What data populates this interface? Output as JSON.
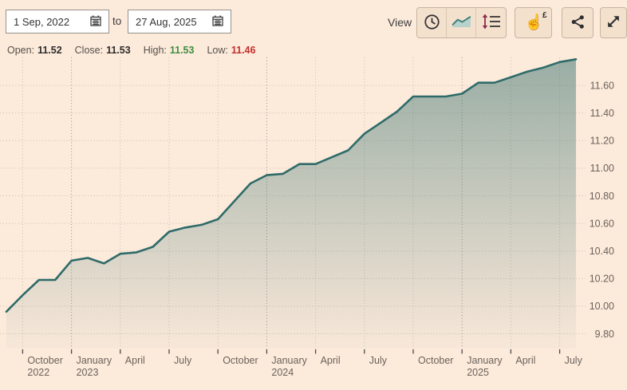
{
  "header": {
    "date_from": "1 Sep, 2022",
    "to_label": "to",
    "date_to": "27 Aug, 2025",
    "view_label": "View",
    "tool_buttons": [
      {
        "name": "history",
        "icon": "clock-icon"
      },
      {
        "name": "line-chart-view",
        "icon": "line-chart-icon"
      },
      {
        "name": "depth-view",
        "icon": "depth-icon"
      }
    ],
    "action_buttons": [
      {
        "name": "tap-for-price",
        "icon": "touch-pound-icon"
      },
      {
        "name": "share",
        "icon": "share-icon"
      },
      {
        "name": "fullscreen",
        "icon": "expand-icon"
      }
    ]
  },
  "ohlc": {
    "open": {
      "label": "Open:",
      "value": "11.52"
    },
    "close": {
      "label": "Close:",
      "value": "11.53"
    },
    "high": {
      "label": "High:",
      "value": "11.53"
    },
    "low": {
      "label": "Low:",
      "value": "11.46"
    }
  },
  "chart_data": {
    "type": "area",
    "categories": [
      "Sep 2022",
      "Oct 2022",
      "Nov 2022",
      "Dec 2022",
      "Jan 2023",
      "Feb 2023",
      "Mar 2023",
      "Apr 2023",
      "May 2023",
      "Jun 2023",
      "Jul 2023",
      "Aug 2023",
      "Sep 2023",
      "Oct 2023",
      "Nov 2023",
      "Dec 2023",
      "Jan 2024",
      "Feb 2024",
      "Mar 2024",
      "Apr 2024",
      "May 2024",
      "Jun 2024",
      "Jul 2024",
      "Aug 2024",
      "Sep 2024",
      "Oct 2024",
      "Nov 2024",
      "Dec 2024",
      "Jan 2025",
      "Feb 2025",
      "Mar 2025",
      "Apr 2025",
      "May 2025",
      "Jun 2025",
      "Jul 2025",
      "Aug 2025"
    ],
    "values": [
      9.96,
      10.08,
      10.19,
      10.19,
      10.33,
      10.35,
      10.31,
      10.38,
      10.39,
      10.43,
      10.54,
      10.57,
      10.59,
      10.63,
      10.76,
      10.89,
      10.95,
      10.96,
      11.03,
      11.03,
      11.08,
      11.13,
      11.25,
      11.33,
      11.41,
      11.52,
      11.52,
      11.52,
      11.54,
      11.62,
      11.62,
      11.66,
      11.7,
      11.73,
      11.77,
      11.79
    ],
    "x_ticks": [
      {
        "index": 1,
        "label": "October",
        "year": "2022"
      },
      {
        "index": 4,
        "label": "January",
        "year": "2023"
      },
      {
        "index": 7,
        "label": "April"
      },
      {
        "index": 10,
        "label": "July"
      },
      {
        "index": 13,
        "label": "October"
      },
      {
        "index": 16,
        "label": "January",
        "year": "2024"
      },
      {
        "index": 19,
        "label": "April"
      },
      {
        "index": 22,
        "label": "July"
      },
      {
        "index": 25,
        "label": "October"
      },
      {
        "index": 28,
        "label": "January",
        "year": "2025"
      },
      {
        "index": 31,
        "label": "April"
      },
      {
        "index": 34,
        "label": "July"
      }
    ],
    "y_ticks": [
      {
        "value": 9.8,
        "label": "9.80"
      },
      {
        "value": 10.0,
        "label": "10.00"
      },
      {
        "value": 10.2,
        "label": "10.20"
      },
      {
        "value": 10.4,
        "label": "10.40"
      },
      {
        "value": 10.6,
        "label": "10.60"
      },
      {
        "value": 10.8,
        "label": "10.80"
      },
      {
        "value": 11.0,
        "label": "11.00"
      },
      {
        "value": 11.2,
        "label": "11.20"
      },
      {
        "value": 11.4,
        "label": "11.40"
      },
      {
        "value": 11.6,
        "label": "11.60"
      }
    ],
    "ylim": [
      9.693,
      11.89
    ],
    "grid": "dotted",
    "legend_position": "none",
    "colors": {
      "line": "#2e6b69",
      "fill": "#2e6b69",
      "grid": "#ccbfae",
      "grid_major": "#9e9184",
      "tick": "#4a4a4a",
      "axis_text": "#6b635b"
    }
  },
  "theme": {
    "background": "#fceadb",
    "button_bg": "#f3e1ce",
    "button_border": "#c7b59f",
    "input_bg": "#ffffff",
    "input_border": "#98928a",
    "text": "#3c3c3c",
    "value_text": "#2d2d2d",
    "high_green": "#3f8f3f",
    "low_red": "#c2302d",
    "depth_icon_red": "#8e2c4a"
  }
}
